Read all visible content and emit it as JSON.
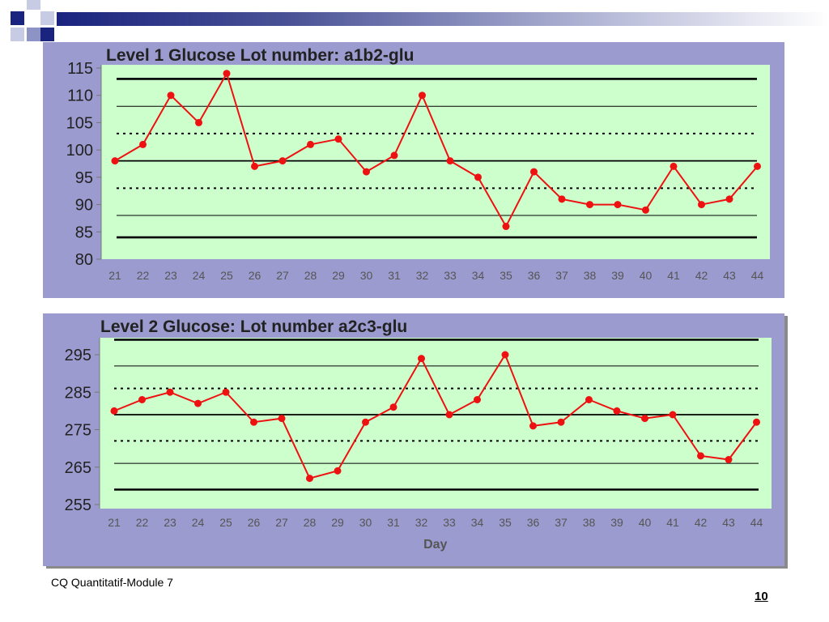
{
  "slide": {
    "footer_text": "CQ Quantitatif-Module 7",
    "page_number": "10",
    "colors": {
      "header_dark": "#1a237e",
      "panel": "#9b9bcf",
      "plot": "#ccffcc",
      "series": "#ee1111"
    }
  },
  "chart_data": [
    {
      "type": "line",
      "title": "Level 1 Glucose Lot number: a1b2-glu",
      "xlabel": "",
      "ylabel": "",
      "x": [
        21,
        22,
        23,
        24,
        25,
        26,
        27,
        28,
        29,
        30,
        31,
        32,
        33,
        34,
        35,
        36,
        37,
        38,
        39,
        40,
        41,
        42,
        43,
        44
      ],
      "series": [
        {
          "name": "",
          "color": "#ee1111",
          "values": [
            98,
            101,
            110,
            105,
            114,
            97,
            98,
            101,
            102,
            96,
            99,
            110,
            98,
            95,
            86,
            96,
            91,
            90,
            90,
            89,
            97,
            90,
            91,
            97
          ]
        }
      ],
      "ylim": [
        80,
        115
      ],
      "yticks": [
        80,
        85,
        90,
        95,
        100,
        105,
        110,
        115
      ],
      "reference_lines": [
        {
          "value": 113,
          "style": "thick"
        },
        {
          "value": 108,
          "style": "thin"
        },
        {
          "value": 103,
          "style": "dotted"
        },
        {
          "value": 98,
          "style": "solid"
        },
        {
          "value": 93,
          "style": "dotted"
        },
        {
          "value": 88,
          "style": "thin"
        },
        {
          "value": 84,
          "style": "thick"
        }
      ],
      "grid": false
    },
    {
      "type": "line",
      "title": "Level 2 Glucose: Lot number a2c3-glu",
      "xlabel": "Day",
      "ylabel": "",
      "x": [
        21,
        22,
        23,
        24,
        25,
        26,
        27,
        28,
        29,
        30,
        31,
        32,
        33,
        34,
        35,
        36,
        37,
        38,
        39,
        40,
        41,
        42,
        43,
        44
      ],
      "series": [
        {
          "name": "",
          "color": "#ee1111",
          "values": [
            280,
            283,
            285,
            282,
            285,
            277,
            278,
            262,
            264,
            277,
            281,
            294,
            279,
            283,
            295,
            276,
            277,
            283,
            280,
            278,
            279,
            268,
            267,
            277
          ]
        }
      ],
      "ylim": [
        255,
        298
      ],
      "yticks": [
        255,
        265,
        275,
        285,
        295
      ],
      "reference_lines": [
        {
          "value": 299,
          "style": "thick"
        },
        {
          "value": 292,
          "style": "thin"
        },
        {
          "value": 286,
          "style": "dotted"
        },
        {
          "value": 279,
          "style": "solid"
        },
        {
          "value": 272,
          "style": "dotted"
        },
        {
          "value": 266,
          "style": "thin"
        },
        {
          "value": 259,
          "style": "thick"
        }
      ],
      "grid": false
    }
  ]
}
